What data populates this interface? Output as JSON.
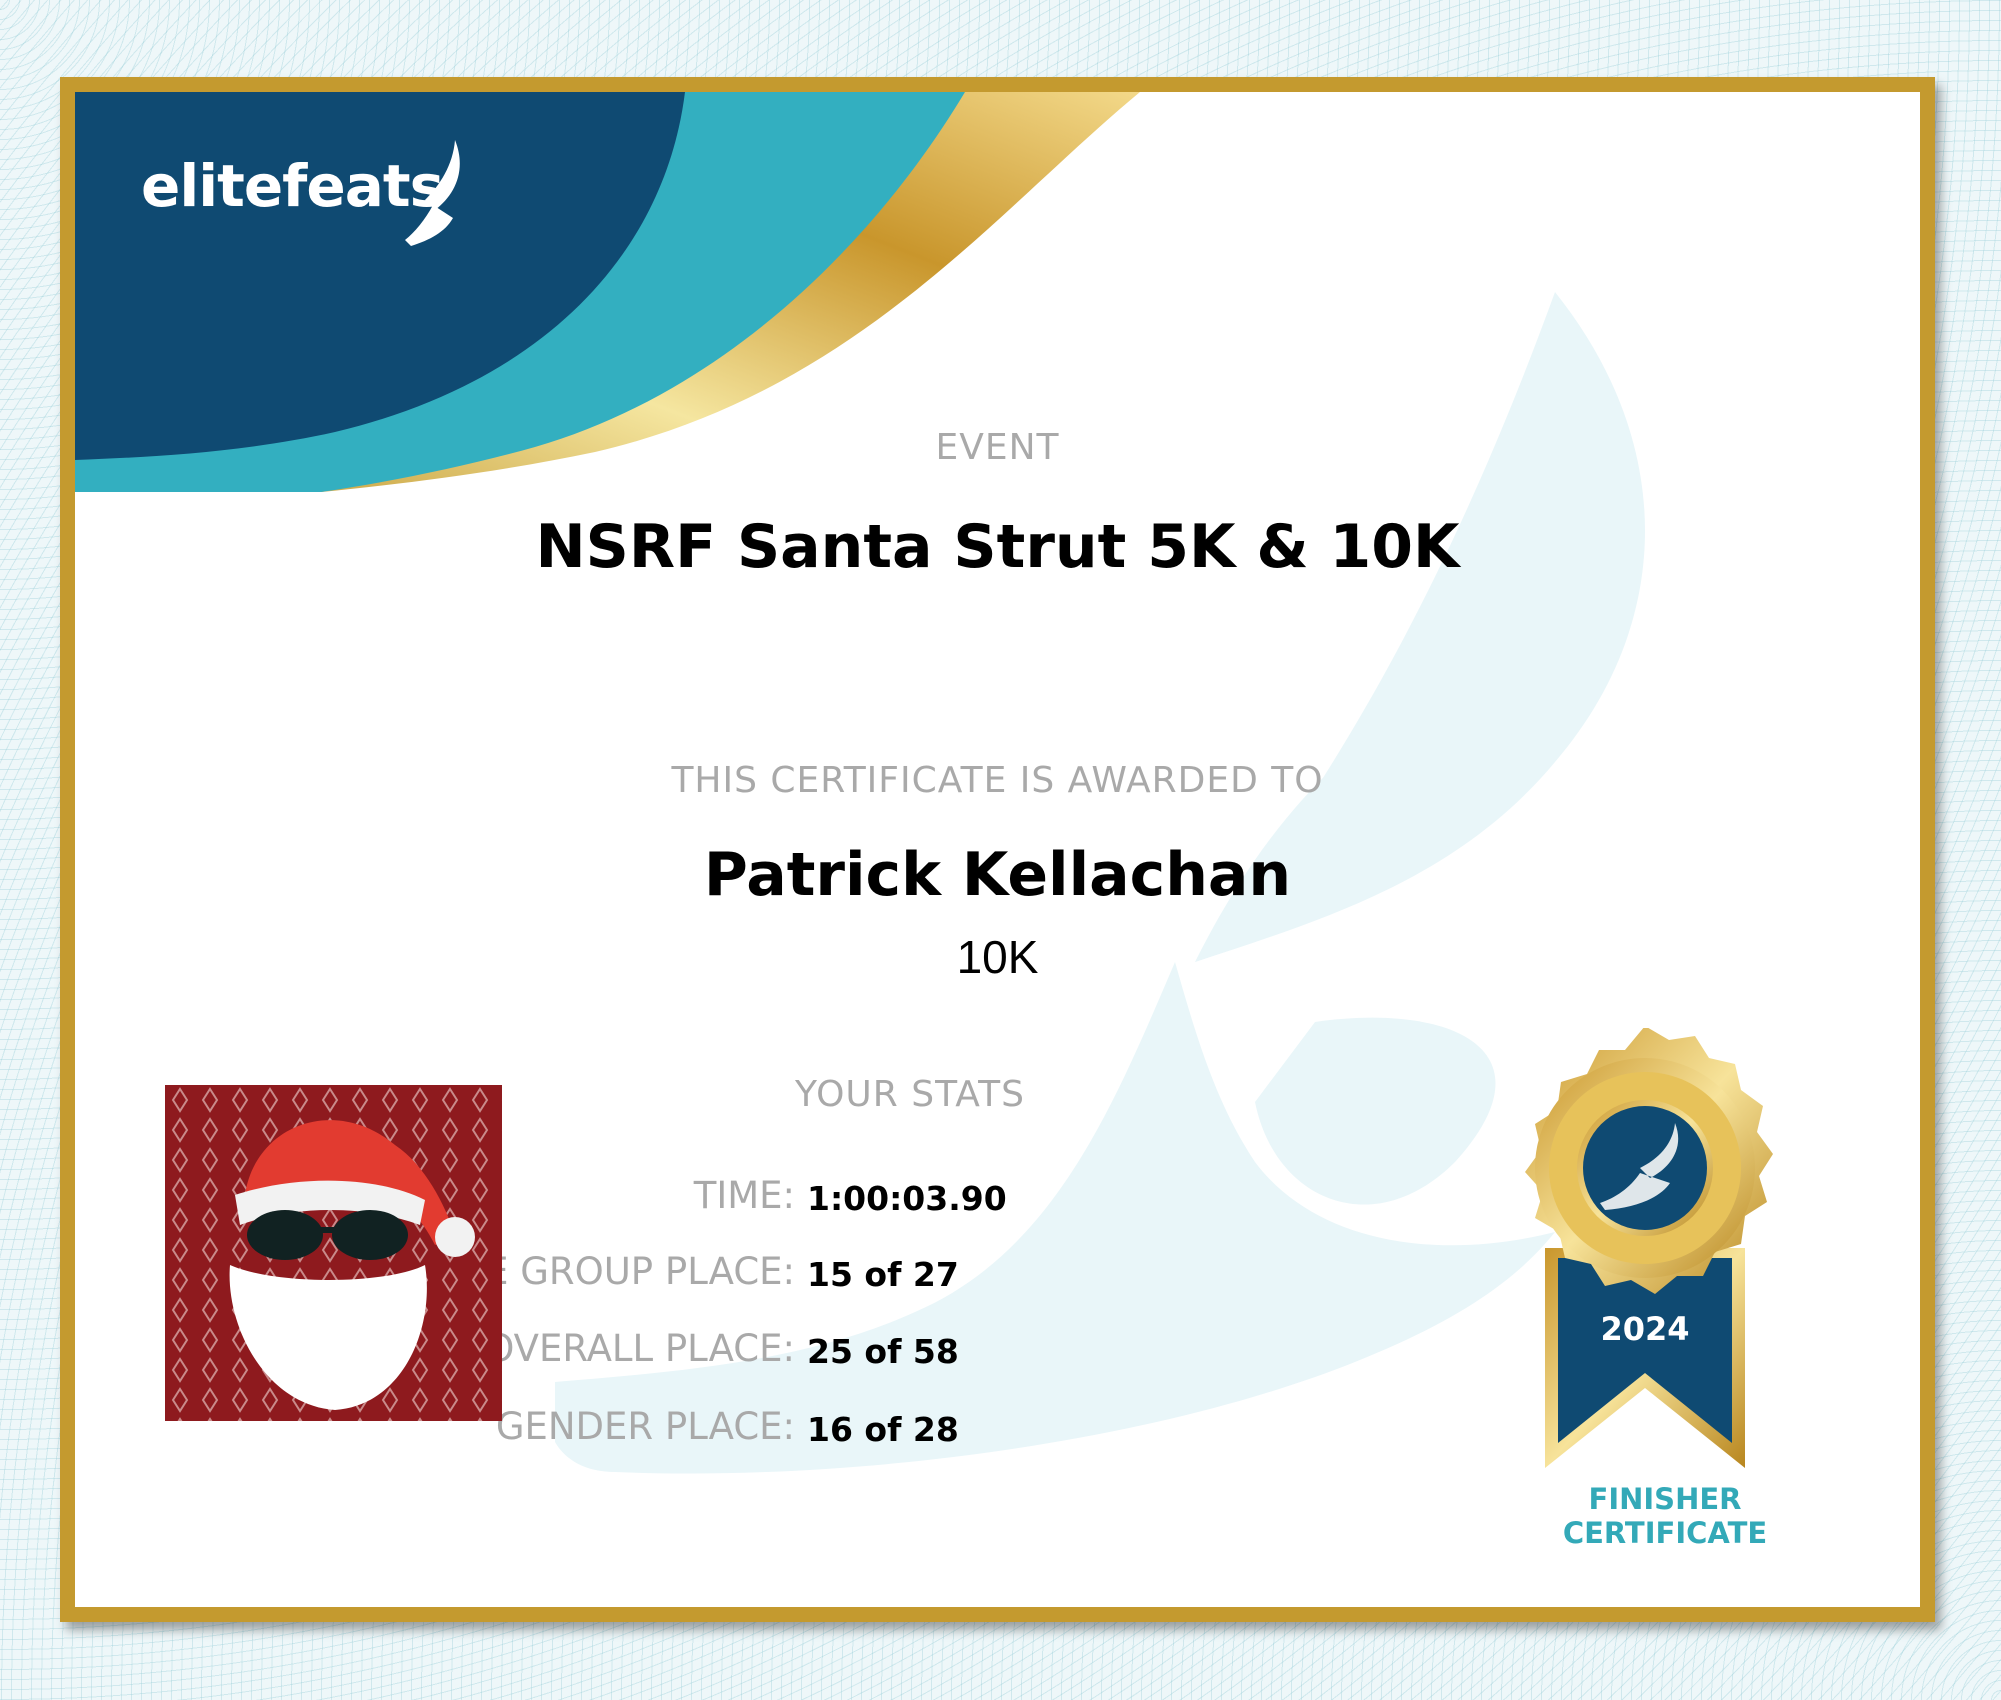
{
  "brand": {
    "logo_text": "elitefeats",
    "colors": {
      "navy": "#0f4a72",
      "teal": "#33afc0",
      "gold": "#c49a2f"
    }
  },
  "event": {
    "label": "EVENT",
    "title": "NSRF Santa Strut 5K & 10K"
  },
  "award": {
    "label": "THIS CERTIFICATE IS AWARDED TO",
    "name": "Patrick Kellachan",
    "distance": "10K"
  },
  "stats": {
    "label": "YOUR STATS",
    "rows": [
      {
        "label": "TIME:",
        "value": "1:00:03.90"
      },
      {
        "label": "AGE GROUP PLACE:",
        "value": "15 of 27"
      },
      {
        "label": "OVERALL PLACE:",
        "value": "25 of 58"
      },
      {
        "label": "GENDER PLACE:",
        "value": "16 of 28"
      }
    ]
  },
  "medal": {
    "year": "2024",
    "caption_line1": "FINISHER",
    "caption_line2": "CERTIFICATE"
  }
}
